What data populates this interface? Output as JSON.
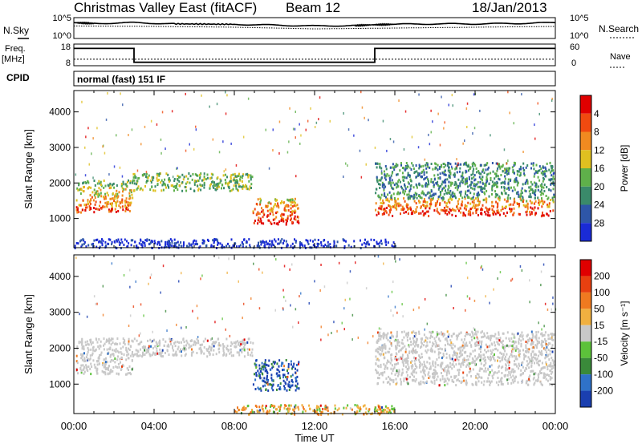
{
  "header": {
    "title": "Christmas Valley East (fitACF)",
    "beam": "Beam 12",
    "date": "18/Jan/2013"
  },
  "side_labels": {
    "nsky": "N.Sky",
    "nsearch": "N.Search",
    "freq": "Freq.",
    "freq_unit": "[MHz]",
    "nave": "Nave",
    "cpid": "CPID"
  },
  "cpid_text": "normal (fast) 151 IF",
  "chart_data": [
    {
      "type": "line",
      "name": "noise",
      "left_ticks": [
        "10^5",
        "10^0"
      ],
      "right_ticks": [
        "10^5",
        "10^0"
      ],
      "series": [
        {
          "name": "N.Sky",
          "x": [
            0,
            1,
            3,
            5,
            8,
            10,
            12,
            14,
            15,
            16,
            18,
            20,
            22,
            24
          ],
          "y": [
            3.8,
            3.6,
            3.8,
            3.5,
            3.4,
            3.2,
            3.0,
            3.1,
            3.3,
            3.4,
            3.5,
            3.5,
            3.6,
            3.8
          ]
        },
        {
          "name": "N.Search",
          "x": [
            0,
            4,
            8,
            12,
            16,
            20,
            24
          ],
          "y": [
            3.0,
            2.9,
            2.7,
            2.3,
            2.5,
            2.7,
            2.9
          ]
        }
      ],
      "ylim": [
        0,
        5
      ]
    },
    {
      "type": "line",
      "name": "frequency_nave",
      "left_ticks": [
        "18",
        "8"
      ],
      "right_ticks": [
        "60",
        "0"
      ],
      "series": [
        {
          "name": "Freq.",
          "x": [
            0,
            3,
            3,
            15,
            15,
            24
          ],
          "y": [
            16,
            16,
            9.6,
            9.6,
            16,
            16
          ]
        },
        {
          "name": "Nave",
          "x": [
            0,
            24
          ],
          "y": [
            11,
            11
          ]
        }
      ],
      "ylim": [
        8,
        18
      ]
    },
    {
      "type": "heatmap",
      "name": "power",
      "ylabel": "Slant Range [km]",
      "yticks": [
        "1000",
        "2000",
        "3000",
        "4000"
      ],
      "ylim": [
        180,
        4600
      ],
      "xlim": [
        0,
        24
      ],
      "colorbar": {
        "label": "Power [dB]",
        "ticks": [
          "4",
          "8",
          "12",
          "16",
          "20",
          "24",
          "28"
        ],
        "colors": [
          "#1a2bd6",
          "#2e56a8",
          "#3a8a6a",
          "#5fb04a",
          "#e0c020",
          "#f08a20",
          "#f04a10",
          "#e00000"
        ]
      },
      "bands": [
        {
          "x0": 0.1,
          "x1": 2.9,
          "y0": 1200,
          "y1": 2100,
          "level": 6
        },
        {
          "x0": 2.9,
          "x1": 8.9,
          "y0": 1800,
          "y1": 2300,
          "level": 3
        },
        {
          "x0": 8.9,
          "x1": 11.2,
          "y0": 850,
          "y1": 1600,
          "level": 7
        },
        {
          "x0": 15.0,
          "x1": 23.9,
          "y0": 1100,
          "y1": 1600,
          "level": 7
        },
        {
          "x0": 15.0,
          "x1": 23.9,
          "y0": 1600,
          "y1": 2600,
          "level": 2
        },
        {
          "x0": 0.0,
          "x1": 16.0,
          "y0": 200,
          "y1": 450,
          "level": 0
        }
      ]
    },
    {
      "type": "heatmap",
      "name": "velocity",
      "ylabel": "Slant Range [km]",
      "yticks": [
        "1000",
        "2000",
        "3000",
        "4000"
      ],
      "ylim": [
        180,
        4600
      ],
      "xlim": [
        0,
        24
      ],
      "xticks": [
        "00:00",
        "04:00",
        "08:00",
        "12:00",
        "16:00",
        "20:00",
        "00:00"
      ],
      "xlabel": "Time UT",
      "colorbar": {
        "label": "Velocity [m s⁻¹]",
        "ticks": [
          "200",
          "100",
          "50",
          "15",
          "-15",
          "-50",
          "-100",
          "-200"
        ],
        "colors": [
          "#1a3fb0",
          "#2f72c8",
          "#3a8a3a",
          "#5cc23a",
          "#c8c8c8",
          "#f0b040",
          "#f07a20",
          "#e84010",
          "#e00000"
        ]
      },
      "bands": [
        {
          "x0": 0.1,
          "x1": 2.9,
          "y0": 1300,
          "y1": 2300,
          "level": 4
        },
        {
          "x0": 2.9,
          "x1": 8.9,
          "y0": 1800,
          "y1": 2300,
          "level": 4
        },
        {
          "x0": 8.9,
          "x1": 11.2,
          "y0": 850,
          "y1": 1700,
          "level": 0
        },
        {
          "x0": 15.0,
          "x1": 23.9,
          "y0": 1000,
          "y1": 2500,
          "level": 4
        },
        {
          "x0": 8.0,
          "x1": 16.0,
          "y0": 180,
          "y1": 450,
          "level": 6
        }
      ]
    }
  ]
}
